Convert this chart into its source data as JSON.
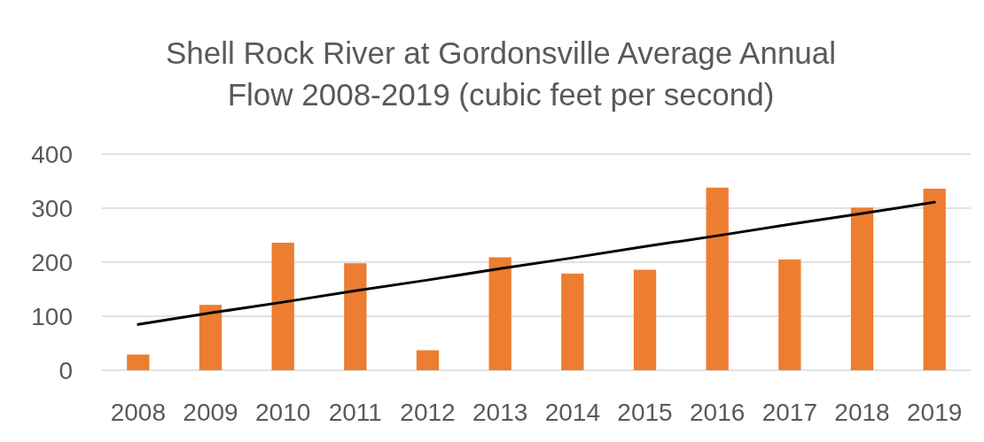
{
  "chart_data": {
    "type": "bar",
    "title": "Shell Rock River at Gordonsville Average Annual Flow 2008-2019 (cubic feet per second)",
    "categories": [
      "2008",
      "2009",
      "2010",
      "2011",
      "2012",
      "2013",
      "2014",
      "2015",
      "2016",
      "2017",
      "2018",
      "2019"
    ],
    "series": [
      {
        "color": "#ed7d31",
        "values": [
          29,
          121,
          236,
          198,
          37,
          209,
          179,
          186,
          338,
          205,
          301,
          336
        ]
      },
      {
        "type": "line",
        "color": "#000000",
        "values": [
          85,
          106,
          126,
          147,
          167,
          188,
          208,
          229,
          249,
          270,
          290,
          311
        ]
      }
    ],
    "ylim": [
      0,
      400
    ],
    "yticks": [
      0,
      100,
      200,
      300,
      400
    ],
    "grid": "y",
    "marker": "none",
    "line_style": "solid"
  }
}
